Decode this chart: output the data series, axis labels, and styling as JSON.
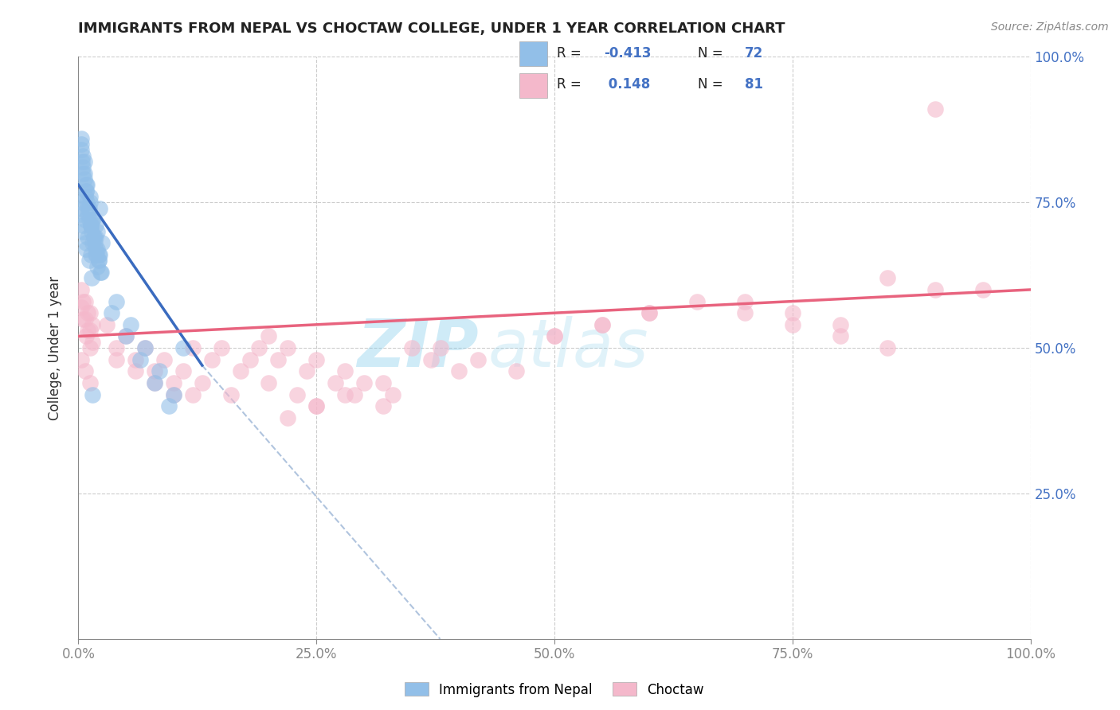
{
  "title": "IMMIGRANTS FROM NEPAL VS CHOCTAW COLLEGE, UNDER 1 YEAR CORRELATION CHART",
  "source_text": "Source: ZipAtlas.com",
  "xlabel": "Immigrants from Nepal",
  "ylabel": "College, Under 1 year",
  "watermark_text": "ZIP",
  "watermark_text2": "atlas",
  "blue_color": "#92bfe8",
  "pink_color": "#f4b8cb",
  "blue_line_color": "#3a6bbf",
  "pink_line_color": "#e8637e",
  "gray_dash_color": "#b0c4de",
  "xlim": [
    0.0,
    1.0
  ],
  "ylim": [
    0.0,
    1.0
  ],
  "xticks": [
    0.0,
    0.25,
    0.5,
    0.75,
    1.0
  ],
  "yticks": [
    0.0,
    0.25,
    0.5,
    0.75,
    1.0
  ],
  "xticklabels": [
    "0.0%",
    "25.0%",
    "50.0%",
    "75.0%",
    "100.0%"
  ],
  "yticklabels_right": [
    "",
    "25.0%",
    "50.0%",
    "75.0%",
    "100.0%"
  ],
  "blue_scatter_x": [
    0.005,
    0.008,
    0.012,
    0.015,
    0.018,
    0.02,
    0.022,
    0.025,
    0.005,
    0.007,
    0.01,
    0.013,
    0.016,
    0.02,
    0.022,
    0.004,
    0.006,
    0.009,
    0.011,
    0.014,
    0.017,
    0.019,
    0.021,
    0.024,
    0.003,
    0.006,
    0.008,
    0.011,
    0.013,
    0.016,
    0.018,
    0.021,
    0.023,
    0.003,
    0.005,
    0.008,
    0.01,
    0.013,
    0.015,
    0.018,
    0.02,
    0.003,
    0.006,
    0.009,
    0.012,
    0.015,
    0.018,
    0.021,
    0.004,
    0.007,
    0.01,
    0.013,
    0.003,
    0.005,
    0.008,
    0.011,
    0.014,
    0.003,
    0.005,
    0.008,
    0.04,
    0.055,
    0.07,
    0.085,
    0.1,
    0.11,
    0.035,
    0.05,
    0.065,
    0.08,
    0.095,
    0.015
  ],
  "blue_scatter_y": [
    0.83,
    0.78,
    0.76,
    0.72,
    0.71,
    0.7,
    0.74,
    0.68,
    0.8,
    0.76,
    0.73,
    0.71,
    0.69,
    0.67,
    0.66,
    0.82,
    0.79,
    0.75,
    0.72,
    0.7,
    0.68,
    0.66,
    0.65,
    0.63,
    0.84,
    0.8,
    0.77,
    0.74,
    0.71,
    0.69,
    0.67,
    0.65,
    0.63,
    0.85,
    0.81,
    0.77,
    0.74,
    0.71,
    0.68,
    0.66,
    0.64,
    0.86,
    0.82,
    0.78,
    0.75,
    0.72,
    0.69,
    0.66,
    0.75,
    0.72,
    0.69,
    0.66,
    0.74,
    0.71,
    0.68,
    0.65,
    0.62,
    0.73,
    0.7,
    0.67,
    0.58,
    0.54,
    0.5,
    0.46,
    0.42,
    0.5,
    0.56,
    0.52,
    0.48,
    0.44,
    0.4,
    0.42
  ],
  "pink_scatter_x": [
    0.005,
    0.01,
    0.015,
    0.005,
    0.01,
    0.015,
    0.008,
    0.012,
    0.003,
    0.007,
    0.012,
    0.003,
    0.007,
    0.012,
    0.003,
    0.007,
    0.012,
    0.04,
    0.06,
    0.08,
    0.1,
    0.12,
    0.15,
    0.18,
    0.2,
    0.22,
    0.25,
    0.28,
    0.3,
    0.33,
    0.35,
    0.37,
    0.4,
    0.03,
    0.05,
    0.07,
    0.09,
    0.11,
    0.13,
    0.16,
    0.19,
    0.21,
    0.24,
    0.27,
    0.29,
    0.32,
    0.04,
    0.06,
    0.08,
    0.1,
    0.12,
    0.14,
    0.17,
    0.2,
    0.23,
    0.25,
    0.5,
    0.55,
    0.6,
    0.38,
    0.42,
    0.46,
    0.5,
    0.55,
    0.6,
    0.65,
    0.7,
    0.75,
    0.8,
    0.85,
    0.9,
    0.95,
    0.7,
    0.75,
    0.8,
    0.85,
    0.9,
    0.32,
    0.28,
    0.25,
    0.22
  ],
  "pink_scatter_y": [
    0.55,
    0.53,
    0.51,
    0.58,
    0.56,
    0.54,
    0.52,
    0.5,
    0.57,
    0.55,
    0.53,
    0.6,
    0.58,
    0.56,
    0.48,
    0.46,
    0.44,
    0.5,
    0.48,
    0.46,
    0.44,
    0.42,
    0.5,
    0.48,
    0.52,
    0.5,
    0.48,
    0.46,
    0.44,
    0.42,
    0.5,
    0.48,
    0.46,
    0.54,
    0.52,
    0.5,
    0.48,
    0.46,
    0.44,
    0.42,
    0.5,
    0.48,
    0.46,
    0.44,
    0.42,
    0.4,
    0.48,
    0.46,
    0.44,
    0.42,
    0.5,
    0.48,
    0.46,
    0.44,
    0.42,
    0.4,
    0.52,
    0.54,
    0.56,
    0.5,
    0.48,
    0.46,
    0.52,
    0.54,
    0.56,
    0.58,
    0.56,
    0.54,
    0.52,
    0.5,
    0.91,
    0.6,
    0.58,
    0.56,
    0.54,
    0.62,
    0.6,
    0.44,
    0.42,
    0.4,
    0.38
  ],
  "blue_line_x": [
    0.0,
    0.13
  ],
  "blue_line_y": [
    0.78,
    0.47
  ],
  "blue_dash_line_x": [
    0.13,
    0.38
  ],
  "blue_dash_line_y": [
    0.47,
    0.0
  ],
  "pink_line_x": [
    0.0,
    1.0
  ],
  "pink_line_y": [
    0.52,
    0.6
  ]
}
